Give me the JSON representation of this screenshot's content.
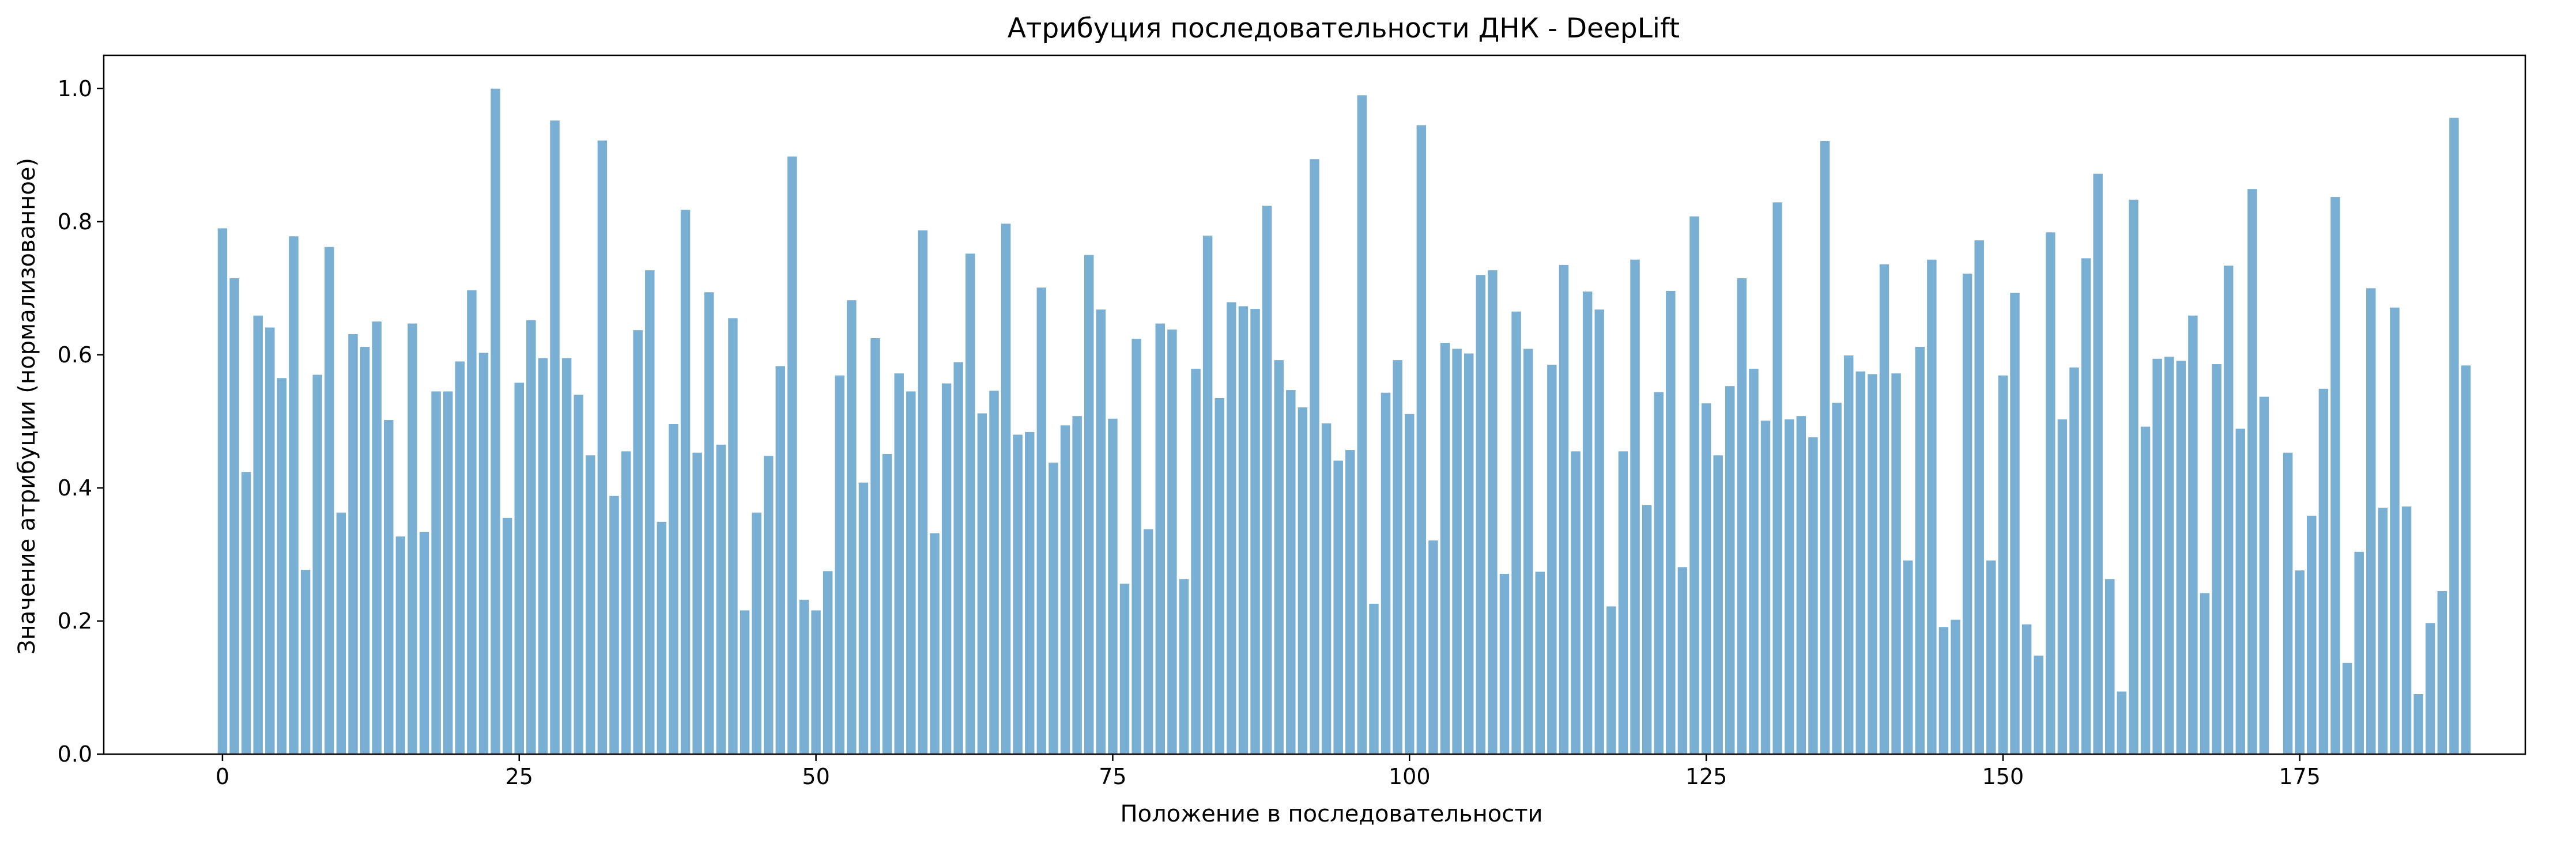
{
  "chart_data": {
    "type": "bar",
    "title": "Атрибуция последовательности ДНК - DeepLift",
    "xlabel": "Положение в последовательности",
    "ylabel": "Значение атрибуции (нормализованное)",
    "xlim": [
      -10,
      194
    ],
    "ylim": [
      0,
      1.05
    ],
    "xticks": [
      0,
      25,
      50,
      75,
      100,
      125,
      150,
      175
    ],
    "xtick_labels": [
      "0",
      "25",
      "50",
      "75",
      "100",
      "125",
      "150",
      "175"
    ],
    "yticks": [
      0.0,
      0.2,
      0.4,
      0.6,
      0.8,
      1.0
    ],
    "ytick_labels": [
      "0.0",
      "0.2",
      "0.4",
      "0.6",
      "0.8",
      "1.0"
    ],
    "grid": false,
    "bar_color": "#7aafd4",
    "x": [
      0,
      1,
      2,
      3,
      4,
      5,
      6,
      7,
      8,
      9,
      10,
      11,
      12,
      13,
      14,
      15,
      16,
      17,
      18,
      19,
      20,
      21,
      22,
      23,
      24,
      25,
      26,
      27,
      28,
      29,
      30,
      31,
      32,
      33,
      34,
      35,
      36,
      37,
      38,
      39,
      40,
      41,
      42,
      43,
      44,
      45,
      46,
      47,
      48,
      49,
      50,
      51,
      52,
      53,
      54,
      55,
      56,
      57,
      58,
      59,
      60,
      61,
      62,
      63,
      64,
      65,
      66,
      67,
      68,
      69,
      70,
      71,
      72,
      73,
      74,
      75,
      76,
      77,
      78,
      79,
      80,
      81,
      82,
      83,
      84,
      85,
      86,
      87,
      88,
      89,
      90,
      91,
      92,
      93,
      94,
      95,
      96,
      97,
      98,
      99,
      100,
      101,
      102,
      103,
      104,
      105,
      106,
      107,
      108,
      109,
      110,
      111,
      112,
      113,
      114,
      115,
      116,
      117,
      118,
      119,
      120,
      121,
      122,
      123,
      124,
      125,
      126,
      127,
      128,
      129,
      130,
      131,
      132,
      133,
      134,
      135,
      136,
      137,
      138,
      139,
      140,
      141,
      142,
      143,
      144,
      145,
      146,
      147,
      148,
      149,
      150,
      151,
      152,
      153,
      154,
      155,
      156,
      157,
      158,
      159,
      160,
      161,
      162,
      163,
      164,
      165,
      166,
      167,
      168,
      169,
      170,
      171,
      172,
      173,
      174,
      175,
      176,
      177,
      178,
      179,
      180,
      181,
      182,
      183,
      184,
      185,
      186,
      187,
      188,
      189
    ],
    "values": [
      0.79,
      0.715,
      0.424,
      0.659,
      0.641,
      0.565,
      0.778,
      0.277,
      0.57,
      0.762,
      0.363,
      0.631,
      0.612,
      0.65,
      0.502,
      0.327,
      0.647,
      0.334,
      0.545,
      0.545,
      0.59,
      0.697,
      0.603,
      1.0,
      0.355,
      0.558,
      0.652,
      0.595,
      0.952,
      0.595,
      0.54,
      0.449,
      0.922,
      0.388,
      0.455,
      0.637,
      0.727,
      0.349,
      0.496,
      0.818,
      0.453,
      0.694,
      0.465,
      0.655,
      0.216,
      0.363,
      0.448,
      0.583,
      0.898,
      0.232,
      0.216,
      0.275,
      0.569,
      0.682,
      0.408,
      0.625,
      0.451,
      0.572,
      0.545,
      0.787,
      0.332,
      0.557,
      0.589,
      0.752,
      0.512,
      0.546,
      0.797,
      0.48,
      0.484,
      0.701,
      0.438,
      0.494,
      0.508,
      0.75,
      0.668,
      0.504,
      0.256,
      0.624,
      0.338,
      0.647,
      0.638,
      0.263,
      0.579,
      0.779,
      0.535,
      0.679,
      0.673,
      0.669,
      0.824,
      0.592,
      0.547,
      0.521,
      0.894,
      0.497,
      0.441,
      0.457,
      0.99,
      0.226,
      0.543,
      0.592,
      0.511,
      0.945,
      0.321,
      0.618,
      0.609,
      0.602,
      0.72,
      0.727,
      0.271,
      0.665,
      0.609,
      0.274,
      0.585,
      0.735,
      0.455,
      0.695,
      0.668,
      0.222,
      0.455,
      0.743,
      0.374,
      0.544,
      0.696,
      0.281,
      0.808,
      0.527,
      0.449,
      0.553,
      0.715,
      0.579,
      0.501,
      0.829,
      0.503,
      0.508,
      0.476,
      0.921,
      0.528,
      0.599,
      0.575,
      0.571,
      0.736,
      0.572,
      0.291,
      0.612,
      0.743,
      0.191,
      0.202,
      0.722,
      0.772,
      0.291,
      0.569,
      0.693,
      0.195,
      0.148,
      0.784,
      0.503,
      0.581,
      0.745,
      0.872,
      0.263,
      0.094,
      0.833,
      0.492,
      0.594,
      0.597,
      0.591,
      0.659,
      0.242,
      0.586,
      0.734,
      0.489,
      0.849,
      0.537,
      0.0,
      0.453,
      0.276,
      0.358,
      0.549,
      0.837,
      0.137,
      0.304,
      0.7,
      0.37,
      0.671,
      0.372,
      0.09,
      0.197,
      0.245,
      0.956,
      0.584
    ]
  }
}
